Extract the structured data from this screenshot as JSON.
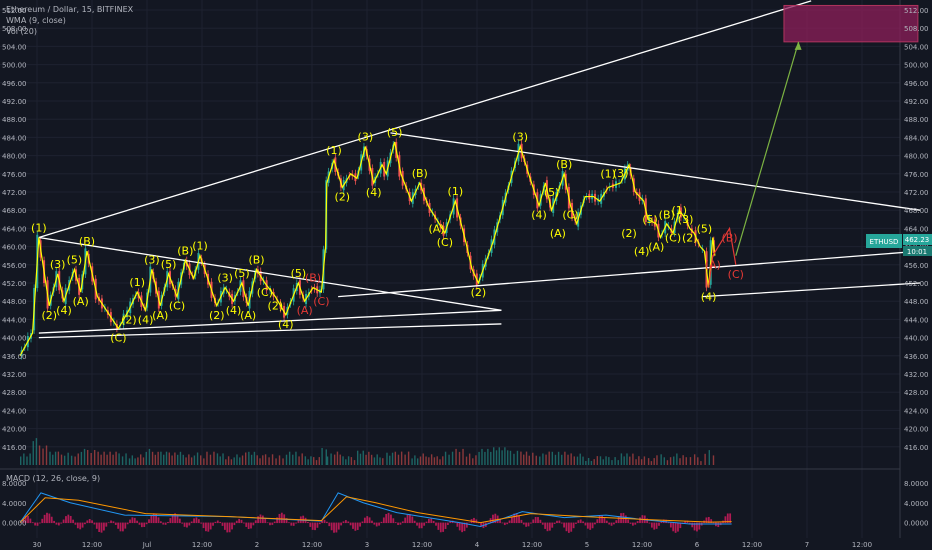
{
  "header": {
    "title": "Ethereum / Dollar, 15, BITFINEX",
    "wma_label": "WMA (9, close)",
    "vol_label": "Vol (20)",
    "macd_label": "MACD (12, 26, close, 9)"
  },
  "colors": {
    "background": "#131722",
    "grid": "#1e2230",
    "trendline": "#ffffff",
    "wave": "#ffff00",
    "wave_red": "#e53935",
    "target_fill": "#8e1f5a",
    "target_border": "#b0355e",
    "projection": "#7cb342",
    "price_tag": "#26a69a",
    "candle_up": "#26a69a",
    "candle_down": "#ef5350",
    "macd": "#2196f3",
    "signal": "#ff9800",
    "wma": "#e6a437"
  },
  "price_tags": {
    "last": "462.23",
    "timer": "10:01",
    "symbol": "ETHUSD"
  },
  "chart_data": {
    "type": "candlestick",
    "title": "Ethereum / Dollar, 15, BITFINEX",
    "xlabel": "",
    "ylabel": "",
    "ylim": [
      412,
      512
    ],
    "grid": true,
    "x_ticks": [
      "30",
      "12:00",
      "Jul",
      "12:00",
      "2",
      "12:00",
      "3",
      "12:00",
      "4",
      "12:00",
      "5",
      "12:00",
      "6",
      "12:00",
      "7",
      "12:00"
    ],
    "y_ticks": [
      "512.00",
      "508.00",
      "504.00",
      "500.00",
      "496.00",
      "492.00",
      "488.00",
      "484.00",
      "480.00",
      "476.00",
      "472.00",
      "468.00",
      "464.00",
      "460.00",
      "456.00",
      "452.00",
      "448.00",
      "444.00",
      "440.00",
      "436.00",
      "432.00",
      "428.00",
      "424.00",
      "420.00",
      "416.00"
    ],
    "price_path": [
      [
        0.0,
        436
      ],
      [
        0.3,
        441
      ],
      [
        0.45,
        462
      ],
      [
        0.7,
        447
      ],
      [
        0.9,
        454
      ],
      [
        1.05,
        448
      ],
      [
        1.3,
        455
      ],
      [
        1.45,
        450
      ],
      [
        1.6,
        459
      ],
      [
        1.85,
        449
      ],
      [
        2.35,
        442
      ],
      [
        2.6,
        446
      ],
      [
        2.8,
        450
      ],
      [
        3.0,
        446
      ],
      [
        3.15,
        455
      ],
      [
        3.35,
        447
      ],
      [
        3.55,
        454
      ],
      [
        3.75,
        449
      ],
      [
        3.95,
        457
      ],
      [
        4.15,
        453
      ],
      [
        4.3,
        458
      ],
      [
        4.45,
        454
      ],
      [
        4.7,
        447
      ],
      [
        4.9,
        451
      ],
      [
        5.1,
        448
      ],
      [
        5.3,
        452
      ],
      [
        5.45,
        447
      ],
      [
        5.65,
        455
      ],
      [
        5.85,
        452
      ],
      [
        6.1,
        449
      ],
      [
        6.35,
        445
      ],
      [
        6.65,
        452
      ],
      [
        6.8,
        448
      ],
      [
        7.0,
        451
      ],
      [
        7.2,
        450
      ],
      [
        7.3,
        460
      ],
      [
        7.33,
        474
      ],
      [
        7.5,
        479
      ],
      [
        7.7,
        473
      ],
      [
        7.9,
        476
      ],
      [
        8.05,
        475
      ],
      [
        8.25,
        482
      ],
      [
        8.45,
        474
      ],
      [
        8.65,
        478
      ],
      [
        8.75,
        476
      ],
      [
        8.95,
        483
      ],
      [
        9.1,
        476
      ],
      [
        9.35,
        470
      ],
      [
        9.55,
        474
      ],
      [
        9.75,
        469
      ],
      [
        9.95,
        466
      ],
      [
        10.15,
        463
      ],
      [
        10.4,
        470
      ],
      [
        10.65,
        461
      ],
      [
        10.8,
        455
      ],
      [
        10.95,
        452
      ],
      [
        11.3,
        461
      ],
      [
        11.7,
        474
      ],
      [
        11.95,
        482
      ],
      [
        12.15,
        476
      ],
      [
        12.4,
        469
      ],
      [
        12.55,
        474
      ],
      [
        12.7,
        468
      ],
      [
        13.0,
        476
      ],
      [
        13.15,
        469
      ],
      [
        13.3,
        465
      ],
      [
        13.5,
        471
      ],
      [
        13.7,
        471
      ],
      [
        13.85,
        470
      ],
      [
        14.05,
        473
      ],
      [
        14.35,
        474
      ],
      [
        14.55,
        478
      ],
      [
        14.7,
        472
      ],
      [
        14.9,
        470
      ],
      [
        15.0,
        466
      ],
      [
        15.2,
        465
      ],
      [
        15.3,
        462
      ],
      [
        15.45,
        465
      ],
      [
        15.6,
        463
      ],
      [
        15.75,
        468
      ],
      [
        15.9,
        466
      ],
      [
        16.0,
        464
      ],
      [
        16.1,
        463
      ],
      [
        16.25,
        460
      ],
      [
        16.35,
        459
      ],
      [
        16.45,
        451
      ],
      [
        16.55,
        462
      ],
      [
        16.6,
        458
      ]
    ],
    "waves": [
      {
        "label": "(1)",
        "x": 0.45,
        "y": 462,
        "color": "yellow"
      },
      {
        "label": "(2)",
        "x": 0.7,
        "y": 447,
        "color": "yellow"
      },
      {
        "label": "(3)",
        "x": 0.9,
        "y": 454,
        "color": "yellow"
      },
      {
        "label": "(4)",
        "x": 1.05,
        "y": 448,
        "color": "yellow"
      },
      {
        "label": "(5)",
        "x": 1.3,
        "y": 455,
        "color": "yellow"
      },
      {
        "label": "(A)",
        "x": 1.45,
        "y": 450,
        "color": "yellow"
      },
      {
        "label": "(B)",
        "x": 1.6,
        "y": 459,
        "color": "yellow"
      },
      {
        "label": "(C)",
        "x": 2.35,
        "y": 442,
        "color": "yellow"
      },
      {
        "label": "(2)",
        "x": 2.6,
        "y": 446,
        "color": "yellow"
      },
      {
        "label": "(1)",
        "x": 2.8,
        "y": 450,
        "color": "yellow"
      },
      {
        "label": "(3)",
        "x": 3.15,
        "y": 455,
        "color": "yellow"
      },
      {
        "label": "(4)",
        "x": 3.0,
        "y": 446,
        "color": "yellow"
      },
      {
        "label": "(5)",
        "x": 3.55,
        "y": 454,
        "color": "yellow"
      },
      {
        "label": "(A)",
        "x": 3.35,
        "y": 447,
        "color": "yellow"
      },
      {
        "label": "(B)",
        "x": 3.95,
        "y": 457,
        "color": "yellow"
      },
      {
        "label": "(1)",
        "x": 4.3,
        "y": 458,
        "color": "yellow"
      },
      {
        "label": "(C)",
        "x": 3.75,
        "y": 449,
        "color": "yellow"
      },
      {
        "label": "(2)",
        "x": 4.7,
        "y": 447,
        "color": "yellow"
      },
      {
        "label": "(3)",
        "x": 4.9,
        "y": 451,
        "color": "yellow"
      },
      {
        "label": "(4)",
        "x": 5.1,
        "y": 448,
        "color": "yellow"
      },
      {
        "label": "(5)",
        "x": 5.3,
        "y": 452,
        "color": "yellow"
      },
      {
        "label": "(A)",
        "x": 5.45,
        "y": 447,
        "color": "yellow"
      },
      {
        "label": "(B)",
        "x": 5.65,
        "y": 455,
        "color": "yellow"
      },
      {
        "label": "(C)",
        "x": 5.85,
        "y": 452,
        "color": "yellow"
      },
      {
        "label": "(2)",
        "x": 6.1,
        "y": 449,
        "color": "yellow"
      },
      {
        "label": "(4)",
        "x": 6.35,
        "y": 445,
        "color": "yellow"
      },
      {
        "label": "(5)",
        "x": 6.65,
        "y": 452,
        "color": "yellow"
      },
      {
        "label": "(B)",
        "x": 7.0,
        "y": 451,
        "color": "red"
      },
      {
        "label": "(A)",
        "x": 6.8,
        "y": 448,
        "color": "red"
      },
      {
        "label": "(C)",
        "x": 7.2,
        "y": 450,
        "color": "red"
      },
      {
        "label": "(1)",
        "x": 7.5,
        "y": 479,
        "color": "yellow"
      },
      {
        "label": "(2)",
        "x": 7.7,
        "y": 473,
        "color": "yellow"
      },
      {
        "label": "(3)",
        "x": 8.25,
        "y": 482,
        "color": "yellow"
      },
      {
        "label": "(4)",
        "x": 8.45,
        "y": 474,
        "color": "yellow"
      },
      {
        "label": "(5)",
        "x": 8.95,
        "y": 483,
        "color": "yellow"
      },
      {
        "label": "(B)",
        "x": 9.55,
        "y": 474,
        "color": "yellow"
      },
      {
        "label": "(A)",
        "x": 9.95,
        "y": 466,
        "color": "yellow"
      },
      {
        "label": "(1)",
        "x": 10.4,
        "y": 470,
        "color": "yellow"
      },
      {
        "label": "(C)",
        "x": 10.15,
        "y": 463,
        "color": "yellow"
      },
      {
        "label": "(2)",
        "x": 10.95,
        "y": 452,
        "color": "yellow"
      },
      {
        "label": "(3)",
        "x": 11.95,
        "y": 482,
        "color": "yellow"
      },
      {
        "label": "(4)",
        "x": 12.4,
        "y": 469,
        "color": "yellow"
      },
      {
        "label": "(5)",
        "x": 12.7,
        "y": 474,
        "color": "yellow"
      },
      {
        "label": "(B)",
        "x": 13.0,
        "y": 476,
        "color": "yellow"
      },
      {
        "label": "(A)",
        "x": 12.85,
        "y": 465,
        "color": "yellow"
      },
      {
        "label": "(C)",
        "x": 13.15,
        "y": 469,
        "color": "yellow"
      },
      {
        "label": "(1)",
        "x": 14.05,
        "y": 478,
        "color": "yellow"
      },
      {
        "label": "(3)",
        "x": 14.35,
        "y": 474,
        "color": "yellow"
      },
      {
        "label": "(2)",
        "x": 14.55,
        "y": 465,
        "color": "yellow"
      },
      {
        "label": "(4)",
        "x": 14.85,
        "y": 461,
        "color": "yellow"
      },
      {
        "label": "(5)",
        "x": 15.05,
        "y": 468,
        "color": "yellow"
      },
      {
        "label": "(A)",
        "x": 15.2,
        "y": 462,
        "color": "yellow"
      },
      {
        "label": "(B)",
        "x": 15.45,
        "y": 469,
        "color": "yellow"
      },
      {
        "label": "(1)",
        "x": 15.75,
        "y": 470,
        "color": "yellow"
      },
      {
        "label": "(C)",
        "x": 15.6,
        "y": 464,
        "color": "yellow"
      },
      {
        "label": "(3)",
        "x": 15.9,
        "y": 468,
        "color": "yellow"
      },
      {
        "label": "(2)",
        "x": 16.0,
        "y": 464,
        "color": "yellow"
      },
      {
        "label": "(5)",
        "x": 16.35,
        "y": 466,
        "color": "yellow"
      },
      {
        "label": "(4)",
        "x": 16.45,
        "y": 451,
        "color": "yellow"
      },
      {
        "label": "(A)",
        "x": 16.55,
        "y": 458,
        "color": "red"
      },
      {
        "label": "(B)",
        "x": 16.95,
        "y": 464,
        "color": "red"
      },
      {
        "label": "(C)",
        "x": 17.1,
        "y": 456,
        "color": "red"
      }
    ],
    "trendlines": [
      [
        [
          0.45,
          462
        ],
        [
          18.9,
          514
        ]
      ],
      [
        [
          0.45,
          462
        ],
        [
          11.5,
          446
        ]
      ],
      [
        [
          0.45,
          441
        ],
        [
          11.5,
          446
        ]
      ],
      [
        [
          0.45,
          440
        ],
        [
          11.5,
          443
        ]
      ],
      [
        [
          8.85,
          485
        ],
        [
          21.5,
          468
        ]
      ],
      [
        [
          7.6,
          449
        ],
        [
          21.5,
          459
        ]
      ],
      [
        [
          16.3,
          449
        ],
        [
          21.5,
          452
        ]
      ]
    ],
    "target_box": {
      "x": [
        18.25,
        21.45
      ],
      "y": [
        505,
        513
      ]
    },
    "projection": [
      [
        17.1,
        458
      ],
      [
        18.6,
        505
      ]
    ],
    "macd": {
      "ylim": [
        -1.5,
        9
      ],
      "y_ticks": [
        "8.0000",
        "4.0000",
        "0.0000"
      ],
      "macd": [
        [
          0.0,
          0
        ],
        [
          0.5,
          6
        ],
        [
          1.2,
          4
        ],
        [
          2.5,
          1.5
        ],
        [
          5,
          1.2
        ],
        [
          7.2,
          0.3
        ],
        [
          7.6,
          6
        ],
        [
          8.2,
          4
        ],
        [
          9,
          2
        ],
        [
          10.5,
          0
        ],
        [
          11,
          -0.8
        ],
        [
          12,
          2.2
        ],
        [
          13,
          1
        ],
        [
          14,
          1.5
        ],
        [
          15,
          0.5
        ],
        [
          16,
          -0.3
        ],
        [
          17,
          -0.3
        ]
      ],
      "signal": [
        [
          0.0,
          0
        ],
        [
          0.6,
          5
        ],
        [
          1.4,
          4.5
        ],
        [
          3,
          1.8
        ],
        [
          5,
          1.2
        ],
        [
          7.2,
          0.4
        ],
        [
          7.8,
          5.2
        ],
        [
          8.5,
          4
        ],
        [
          9.5,
          2
        ],
        [
          11,
          0
        ],
        [
          12.2,
          1.8
        ],
        [
          13.5,
          1.2
        ],
        [
          15,
          0.6
        ],
        [
          16.5,
          0.1
        ],
        [
          17,
          0.2
        ]
      ]
    }
  }
}
